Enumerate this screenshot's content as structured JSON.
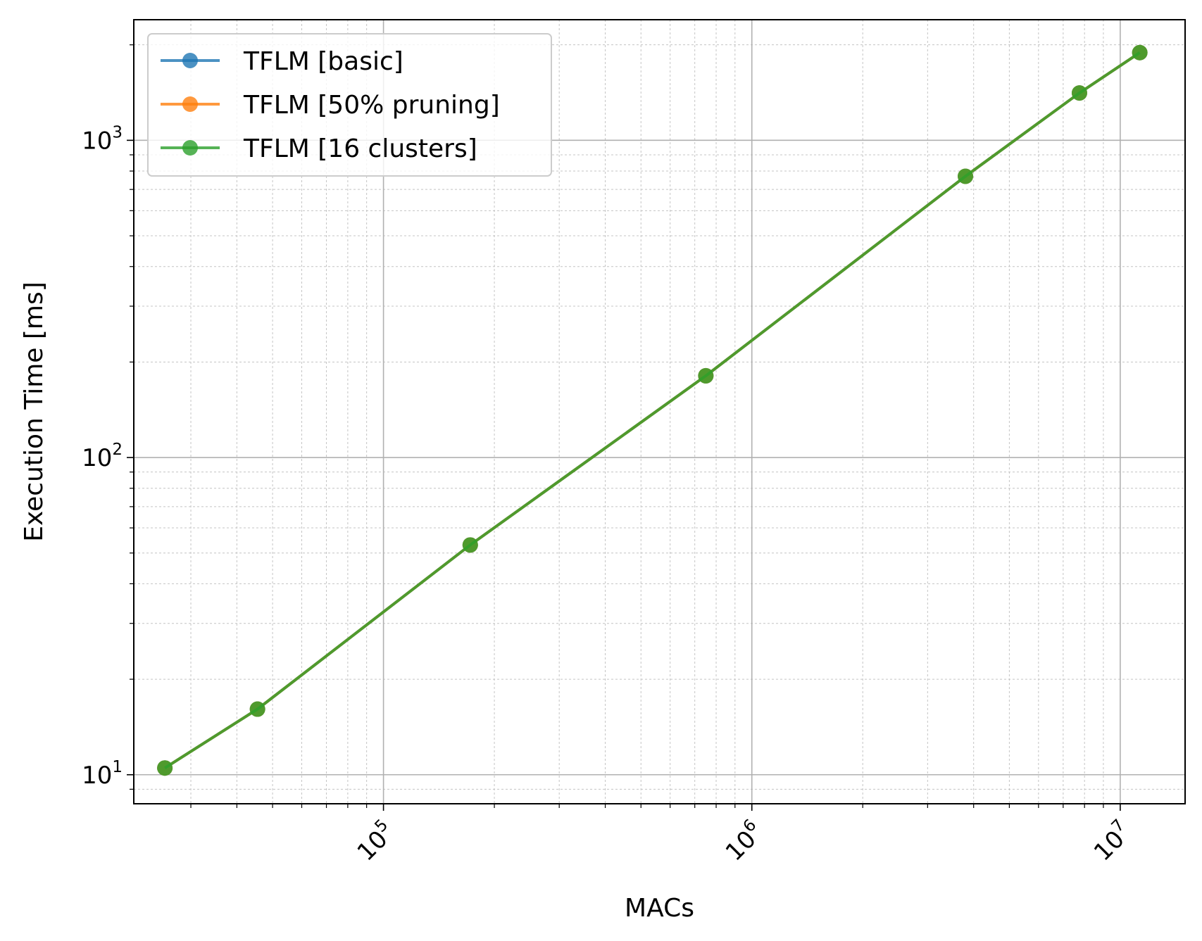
{
  "chart_data": {
    "type": "line",
    "xlabel": "MACs",
    "ylabel": "Execution Time [ms]",
    "xscale": "log",
    "yscale": "log",
    "xlim": [
      21000,
      15000000
    ],
    "ylim": [
      8.1,
      2400
    ],
    "x_ticks": [
      {
        "base": "10",
        "exp": "5",
        "value": 100000
      },
      {
        "base": "10",
        "exp": "6",
        "value": 1000000
      },
      {
        "base": "10",
        "exp": "7",
        "value": 10000000
      }
    ],
    "y_ticks": [
      {
        "base": "10",
        "exp": "1",
        "value": 10
      },
      {
        "base": "10",
        "exp": "2",
        "value": 100
      },
      {
        "base": "10",
        "exp": "3",
        "value": 1000
      }
    ],
    "grid": true,
    "legend_position": "top-left",
    "series": [
      {
        "name": "TFLM [basic]",
        "color": "#1f77b4",
        "x": [
          25500,
          45500,
          172000,
          750000,
          3800000,
          7750000,
          11300000
        ],
        "y": [
          10.5,
          16.1,
          53.0,
          181,
          770,
          1410,
          1890
        ]
      },
      {
        "name": "TFLM [50% pruning]",
        "color": "#ff7f0e",
        "x": [
          25500,
          45500,
          172000,
          750000,
          3800000,
          7750000,
          11300000
        ],
        "y": [
          10.5,
          16.1,
          53.0,
          181,
          770,
          1410,
          1890
        ]
      },
      {
        "name": "TFLM [16 clusters]",
        "color": "#2ca02c",
        "x": [
          25500,
          45500,
          172000,
          750000,
          3800000,
          7750000,
          11300000
        ],
        "y": [
          10.5,
          16.1,
          53.0,
          181,
          770,
          1410,
          1890
        ]
      }
    ]
  }
}
